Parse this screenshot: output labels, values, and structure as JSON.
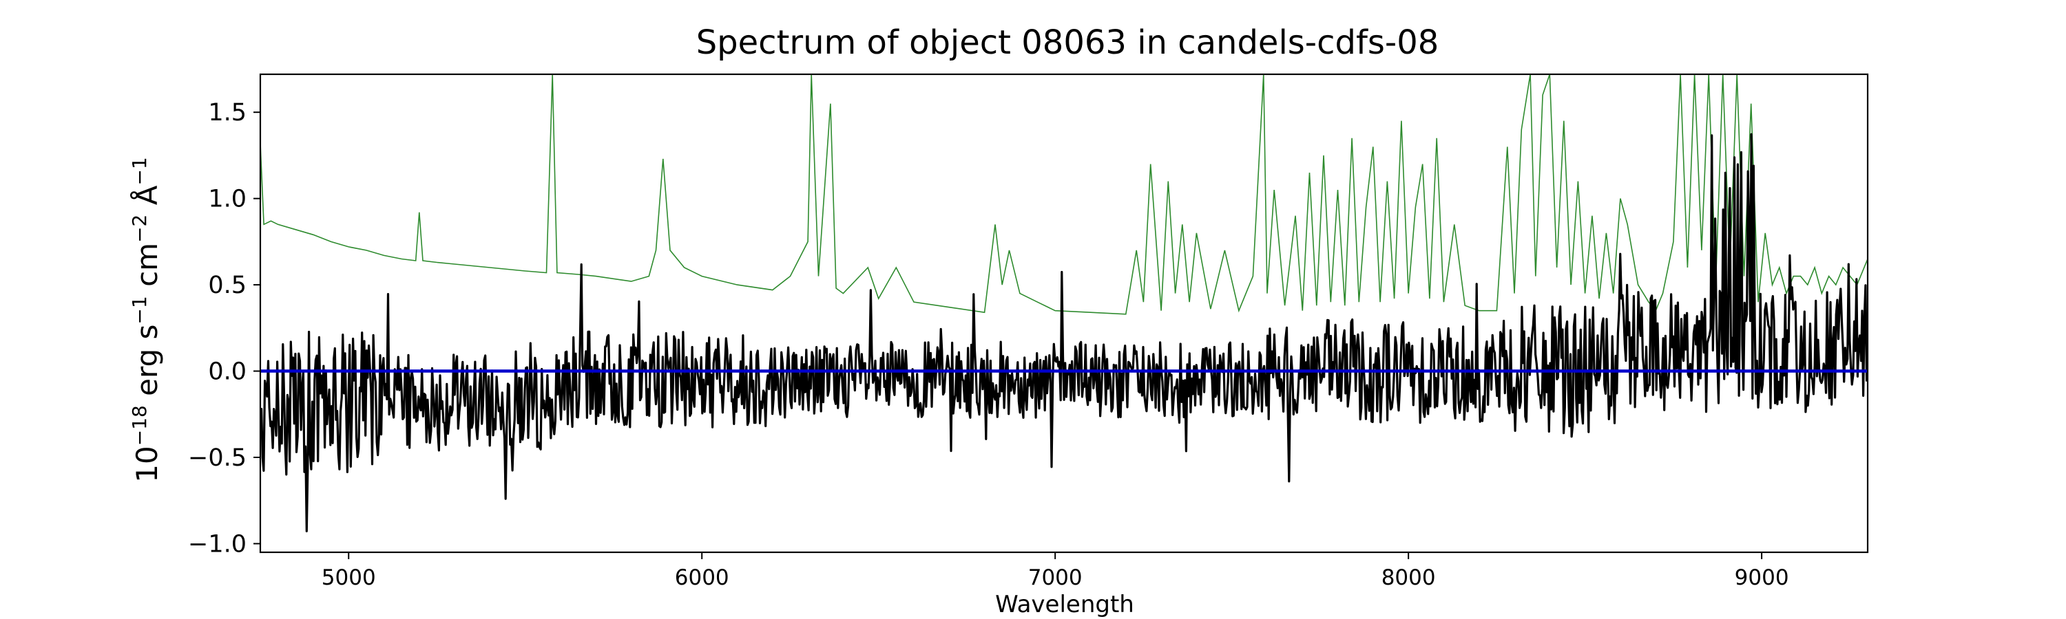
{
  "chart_data": {
    "type": "line",
    "title": "Spectrum of object 08063 in candels-cdfs-08",
    "xlabel": "Wavelength",
    "ylabel": {
      "base": "10",
      "exp": "−18",
      "text1": " erg s",
      "exp2": "−1",
      "text2": " cm",
      "exp3": "−2",
      "text3": " Å",
      "exp4": "−1"
    },
    "xlim": [
      4750,
      9300
    ],
    "ylim": [
      -1.05,
      1.72
    ],
    "x_ticks": [
      5000,
      6000,
      7000,
      8000,
      9000
    ],
    "x_tick_labels": [
      "5000",
      "6000",
      "7000",
      "8000",
      "9000"
    ],
    "y_ticks": [
      -1.0,
      -0.5,
      0.0,
      0.5,
      1.0,
      1.5
    ],
    "y_tick_labels": [
      "−1.0",
      "−0.5",
      "0.0",
      "0.5",
      "1.0",
      "1.5"
    ],
    "grid": false,
    "colors": {
      "flux": "#000000",
      "error": "#2e8b2e",
      "zero": "#0000cc"
    },
    "series": [
      {
        "role": "error",
        "x": [
          4750,
          4760,
          4780,
          4800,
          4850,
          4900,
          4950,
          5000,
          5050,
          5100,
          5150,
          5190,
          5200,
          5210,
          5250,
          5300,
          5400,
          5500,
          5560,
          5577,
          5590,
          5650,
          5700,
          5800,
          5850,
          5870,
          5890,
          5910,
          5950,
          6000,
          6100,
          6200,
          6250,
          6300,
          6310,
          6330,
          6364,
          6380,
          6400,
          6470,
          6500,
          6550,
          6600,
          6700,
          6800,
          6830,
          6850,
          6870,
          6900,
          6950,
          7000,
          7100,
          7200,
          7230,
          7250,
          7270,
          7300,
          7320,
          7340,
          7360,
          7380,
          7400,
          7440,
          7480,
          7520,
          7560,
          7590,
          7600,
          7620,
          7650,
          7680,
          7700,
          7720,
          7740,
          7760,
          7780,
          7800,
          7820,
          7840,
          7860,
          7880,
          7900,
          7920,
          7940,
          7960,
          7980,
          8000,
          8020,
          8040,
          8060,
          8080,
          8100,
          8130,
          8160,
          8200,
          8250,
          8280,
          8300,
          8320,
          8345,
          8360,
          8380,
          8400,
          8420,
          8440,
          8460,
          8480,
          8500,
          8520,
          8540,
          8560,
          8580,
          8600,
          8620,
          8650,
          8680,
          8700,
          8720,
          8750,
          8770,
          8790,
          8810,
          8830,
          8850,
          8870,
          8890,
          8910,
          8930,
          8950,
          8970,
          8990,
          9010,
          9030,
          9050,
          9070,
          9090,
          9110,
          9130,
          9150,
          9170,
          9190,
          9210,
          9230,
          9250,
          9270,
          9300
        ],
        "values": [
          1.32,
          0.85,
          0.87,
          0.85,
          0.82,
          0.79,
          0.75,
          0.72,
          0.7,
          0.67,
          0.65,
          0.64,
          0.92,
          0.64,
          0.63,
          0.62,
          0.6,
          0.58,
          0.57,
          1.72,
          0.57,
          0.56,
          0.55,
          0.52,
          0.55,
          0.7,
          1.23,
          0.7,
          0.6,
          0.55,
          0.5,
          0.47,
          0.55,
          0.75,
          1.72,
          0.55,
          1.55,
          0.48,
          0.45,
          0.6,
          0.42,
          0.6,
          0.4,
          0.37,
          0.34,
          0.85,
          0.5,
          0.7,
          0.45,
          0.4,
          0.35,
          0.34,
          0.33,
          0.7,
          0.4,
          1.2,
          0.35,
          1.1,
          0.45,
          0.85,
          0.4,
          0.8,
          0.36,
          0.7,
          0.35,
          0.55,
          1.72,
          0.45,
          1.05,
          0.38,
          0.9,
          0.35,
          1.15,
          0.38,
          1.25,
          0.4,
          1.05,
          0.38,
          1.35,
          0.4,
          0.95,
          1.3,
          0.4,
          1.1,
          0.42,
          1.45,
          0.45,
          0.95,
          1.2,
          0.42,
          1.35,
          0.4,
          0.85,
          0.38,
          0.35,
          0.35,
          1.3,
          0.45,
          1.4,
          1.72,
          0.55,
          1.6,
          1.72,
          0.6,
          1.45,
          0.5,
          1.1,
          0.45,
          0.9,
          0.42,
          0.8,
          0.45,
          1.0,
          0.85,
          0.5,
          0.4,
          0.35,
          0.45,
          0.75,
          1.72,
          0.6,
          1.72,
          0.7,
          1.72,
          0.5,
          1.72,
          0.6,
          1.72,
          0.55,
          1.55,
          0.4,
          0.8,
          0.5,
          0.6,
          0.45,
          0.55,
          0.55,
          0.5,
          0.6,
          0.45,
          0.55,
          0.5,
          0.6,
          0.55,
          0.5,
          0.65
        ]
      },
      {
        "role": "flux",
        "generated": true
      }
    ]
  }
}
